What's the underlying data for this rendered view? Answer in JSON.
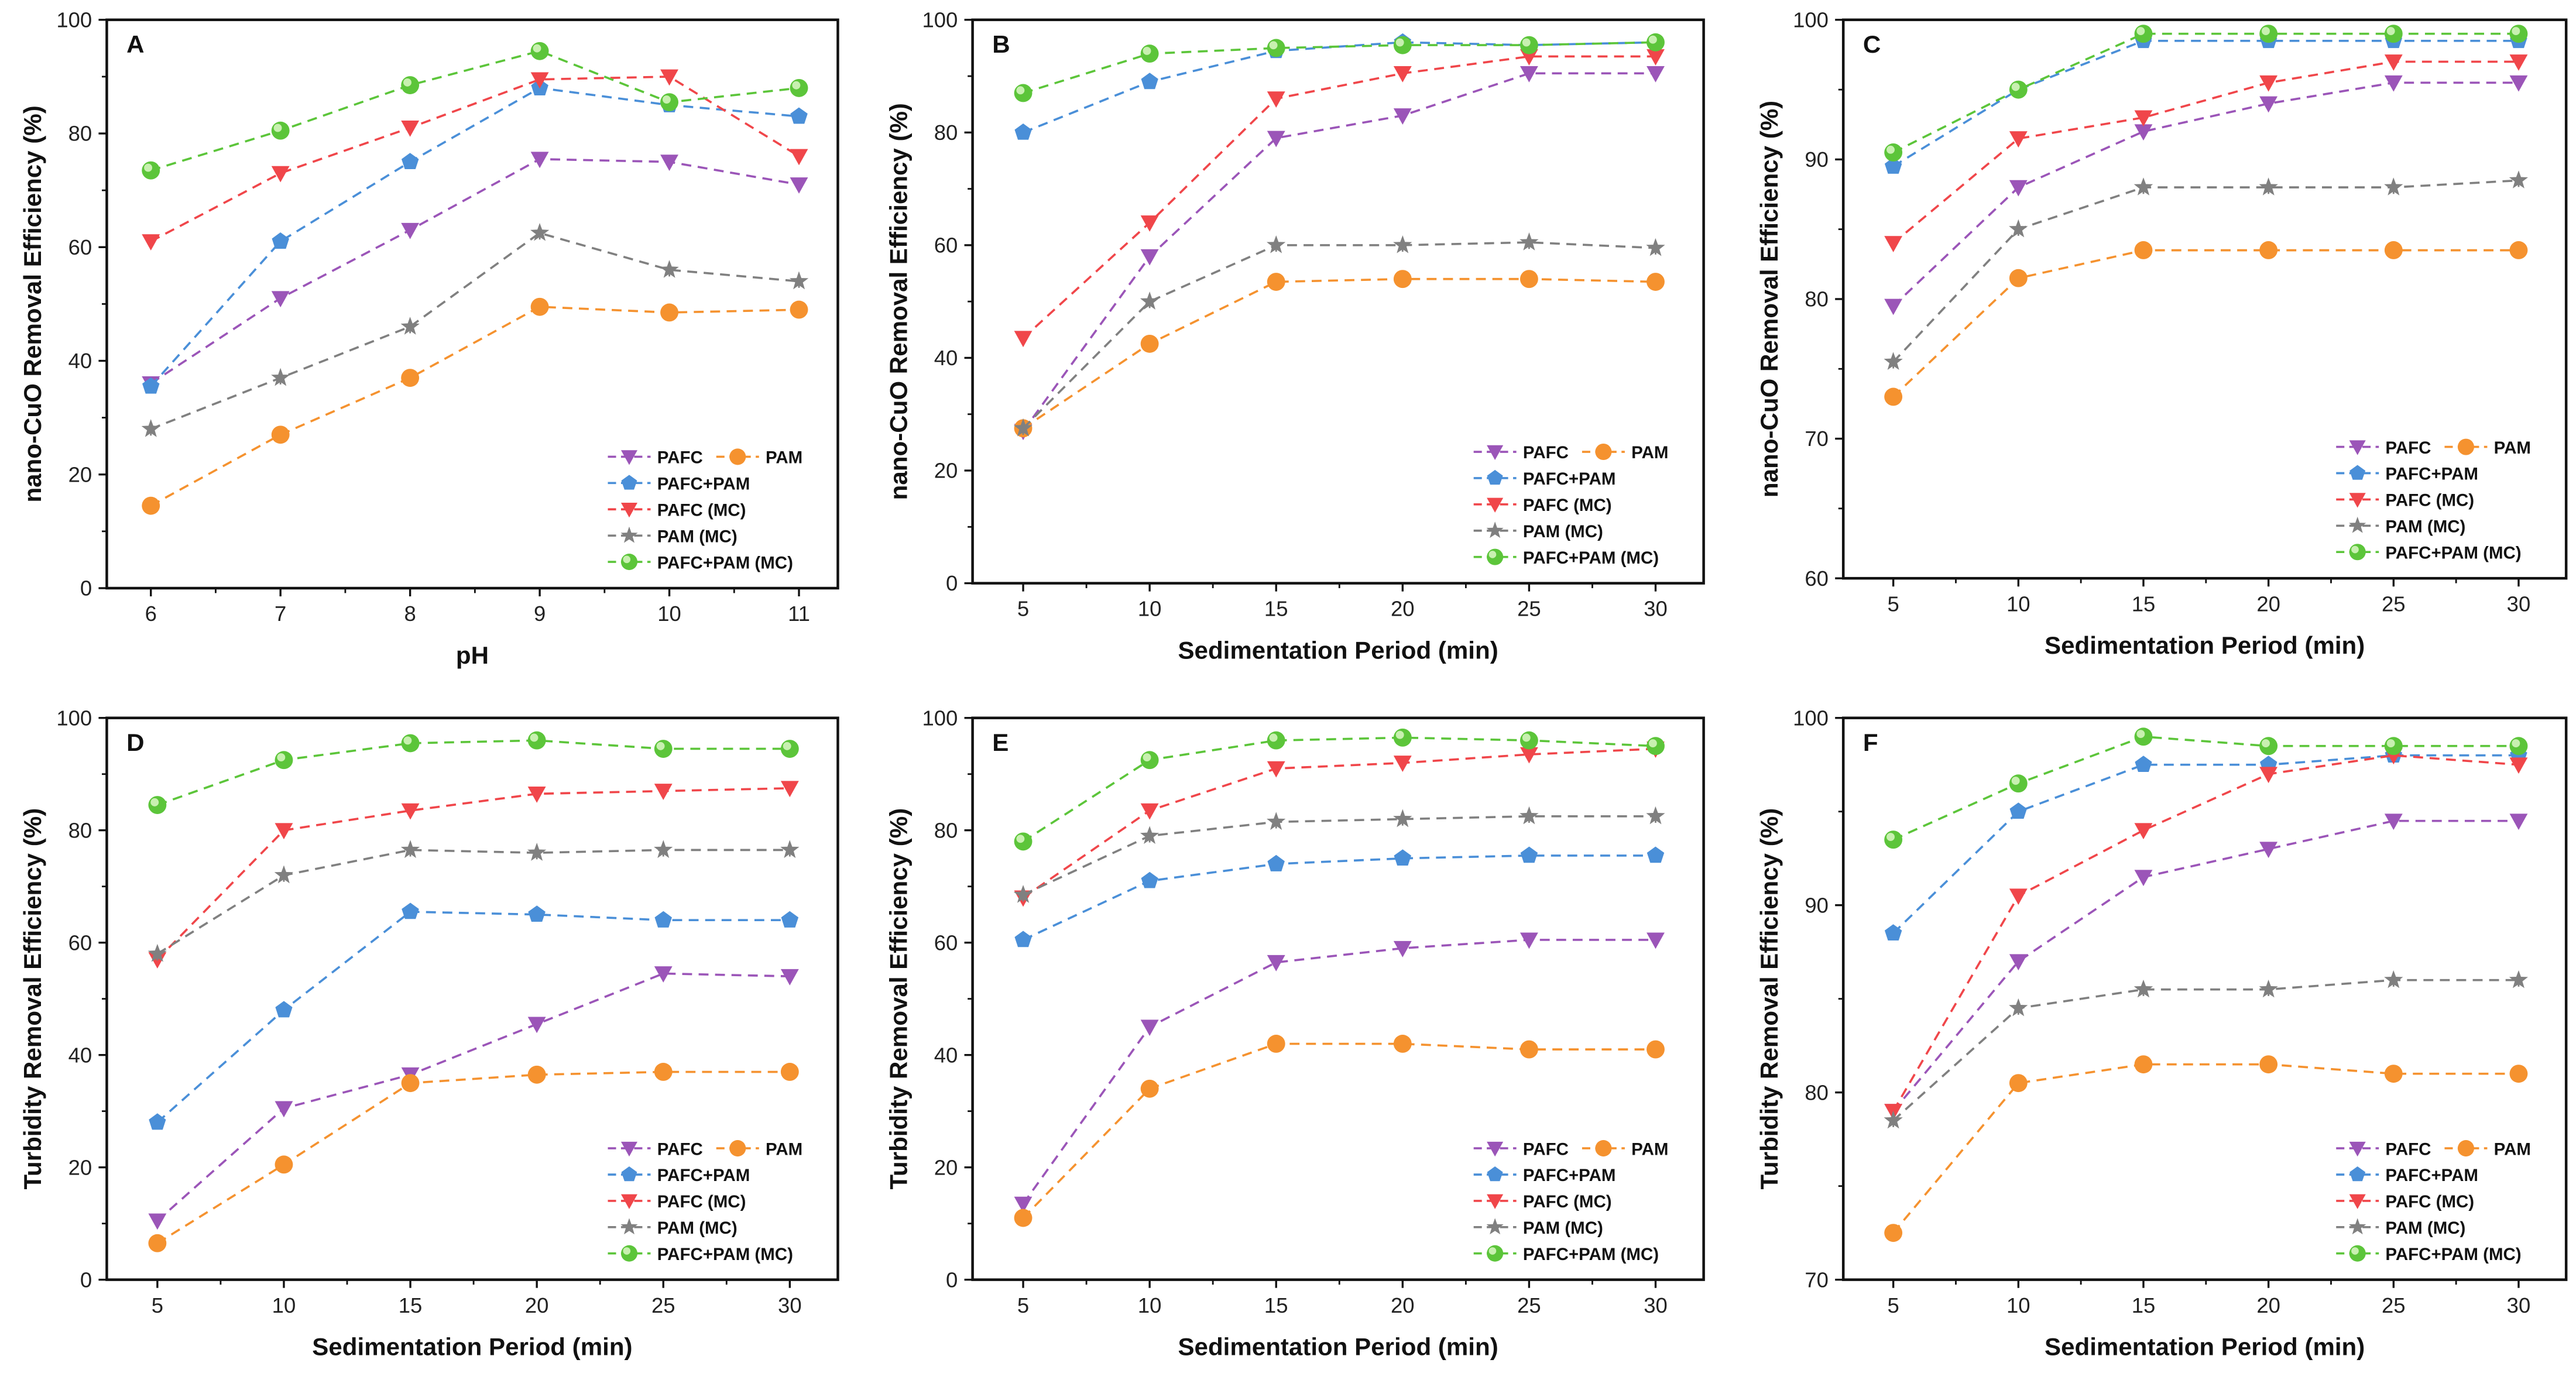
{
  "series_styles": [
    {
      "name": "PAFC",
      "color": "#9b55b8",
      "marker": "triangle-down"
    },
    {
      "name": "PAM",
      "color": "#f5922f",
      "marker": "circle"
    },
    {
      "name": "PAFC+PAM",
      "color": "#4a8fd8",
      "marker": "pentagon"
    },
    {
      "name": "PAFC (MC)",
      "color": "#f0464a",
      "marker": "triangle-down"
    },
    {
      "name": "PAM (MC)",
      "color": "#808080",
      "marker": "star"
    },
    {
      "name": "PAFC+PAM (MC)",
      "color": "#5cc53a",
      "marker": "circle-shaded"
    }
  ],
  "chart_data": [
    {
      "panel": "A",
      "type": "line",
      "xlabel": "pH",
      "ylabel": "nano-CuO Removal Efficiency (%)",
      "x": [
        6,
        7,
        8,
        9,
        10,
        11
      ],
      "xlim": [
        5.66,
        11.3
      ],
      "ylim": [
        0,
        100
      ],
      "yticks": [
        0,
        20,
        40,
        60,
        80,
        100
      ],
      "series": [
        {
          "name": "PAFC",
          "values": [
            36,
            51,
            63,
            75.5,
            75,
            71
          ]
        },
        {
          "name": "PAM",
          "values": [
            14.5,
            27,
            37,
            49.5,
            48.5,
            49
          ]
        },
        {
          "name": "PAFC+PAM",
          "values": [
            35.5,
            61,
            75,
            88,
            85,
            83
          ]
        },
        {
          "name": "PAFC (MC)",
          "values": [
            61,
            73,
            81,
            89.5,
            90,
            76
          ]
        },
        {
          "name": "PAM (MC)",
          "values": [
            28,
            37,
            46,
            62.5,
            56,
            54
          ]
        },
        {
          "name": "PAFC+PAM (MC)",
          "values": [
            73.5,
            80.5,
            88.5,
            94.5,
            85.5,
            88
          ]
        }
      ]
    },
    {
      "panel": "B",
      "type": "line",
      "xlabel": "Sedimentation Period (min)",
      "ylabel": "nano-CuO Removal Efficiency (%)",
      "x": [
        5,
        10,
        15,
        20,
        25,
        30
      ],
      "xlim": [
        3,
        31.9
      ],
      "ylim": [
        0,
        100
      ],
      "yticks": [
        0,
        20,
        40,
        60,
        80,
        100
      ],
      "series": [
        {
          "name": "PAFC",
          "values": [
            27,
            58,
            79,
            83,
            90.5,
            90.5
          ]
        },
        {
          "name": "PAM",
          "values": [
            27.5,
            42.5,
            53.5,
            54,
            54,
            53.5
          ]
        },
        {
          "name": "PAFC+PAM",
          "values": [
            80,
            89,
            94.5,
            96,
            95.5,
            96
          ]
        },
        {
          "name": "PAFC (MC)",
          "values": [
            43.5,
            64,
            86,
            90.5,
            93.5,
            93.5
          ]
        },
        {
          "name": "PAM (MC)",
          "values": [
            27.5,
            50,
            60,
            60,
            60.5,
            59.5
          ]
        },
        {
          "name": "PAFC+PAM (MC)",
          "values": [
            87,
            94,
            95,
            95.5,
            95.5,
            96
          ]
        }
      ]
    },
    {
      "panel": "C",
      "type": "line",
      "xlabel": "Sedimentation Period (min)",
      "ylabel": "nano-CuO Removal Efficiency (%)",
      "x": [
        5,
        10,
        15,
        20,
        25,
        30
      ],
      "xlim": [
        3,
        31.9
      ],
      "ylim": [
        60,
        100
      ],
      "yticks": [
        60,
        70,
        80,
        90,
        100
      ],
      "series": [
        {
          "name": "PAFC",
          "values": [
            79.5,
            88,
            92,
            94,
            95.5,
            95.5
          ]
        },
        {
          "name": "PAM",
          "values": [
            73,
            81.5,
            83.5,
            83.5,
            83.5,
            83.5
          ]
        },
        {
          "name": "PAFC+PAM",
          "values": [
            89.5,
            95,
            98.5,
            98.5,
            98.5,
            98.5
          ]
        },
        {
          "name": "PAFC (MC)",
          "values": [
            84,
            91.5,
            93,
            95.5,
            97,
            97
          ]
        },
        {
          "name": "PAM (MC)",
          "values": [
            75.5,
            85,
            88,
            88,
            88,
            88.5
          ]
        },
        {
          "name": "PAFC+PAM (MC)",
          "values": [
            90.5,
            95,
            99,
            99,
            99,
            99
          ]
        }
      ]
    },
    {
      "panel": "D",
      "type": "line",
      "xlabel": "Sedimentation Period (min)",
      "ylabel": "Turbidity Removal Efficiency (%)",
      "x": [
        5,
        10,
        15,
        20,
        25,
        30
      ],
      "xlim": [
        3,
        31.9
      ],
      "ylim": [
        0,
        100
      ],
      "yticks": [
        0,
        20,
        40,
        60,
        80,
        100
      ],
      "series": [
        {
          "name": "PAFC",
          "values": [
            10.5,
            30.5,
            36.5,
            45.5,
            54.5,
            54
          ]
        },
        {
          "name": "PAM",
          "values": [
            6.5,
            20.5,
            35,
            36.5,
            37,
            37
          ]
        },
        {
          "name": "PAFC+PAM",
          "values": [
            28,
            48,
            65.5,
            65,
            64,
            64
          ]
        },
        {
          "name": "PAFC (MC)",
          "values": [
            57,
            80,
            83.5,
            86.5,
            87,
            87.5
          ]
        },
        {
          "name": "PAM (MC)",
          "values": [
            58,
            72,
            76.5,
            76,
            76.5,
            76.5
          ]
        },
        {
          "name": "PAFC+PAM (MC)",
          "values": [
            84.5,
            92.5,
            95.5,
            96,
            94.5,
            94.5
          ]
        }
      ]
    },
    {
      "panel": "E",
      "type": "line",
      "xlabel": "Sedimentation Period (min)",
      "ylabel": "Turbidity Removal Efficiency (%)",
      "x": [
        5,
        10,
        15,
        20,
        25,
        30
      ],
      "xlim": [
        3,
        31.9
      ],
      "ylim": [
        0,
        100
      ],
      "yticks": [
        0,
        20,
        40,
        60,
        80,
        100
      ],
      "series": [
        {
          "name": "PAFC",
          "values": [
            13.5,
            45,
            56.5,
            59,
            60.5,
            60.5
          ]
        },
        {
          "name": "PAM",
          "values": [
            11,
            34,
            42,
            42,
            41,
            41
          ]
        },
        {
          "name": "PAFC+PAM",
          "values": [
            60.5,
            71,
            74,
            75,
            75.5,
            75.5
          ]
        },
        {
          "name": "PAFC (MC)",
          "values": [
            68,
            83.5,
            91,
            92,
            93.5,
            94.5
          ]
        },
        {
          "name": "PAM (MC)",
          "values": [
            68.5,
            79,
            81.5,
            82,
            82.5,
            82.5
          ]
        },
        {
          "name": "PAFC+PAM (MC)",
          "values": [
            78,
            92.5,
            96,
            96.5,
            96,
            95
          ]
        }
      ]
    },
    {
      "panel": "F",
      "type": "line",
      "xlabel": "Sedimentation Period (min)",
      "ylabel": "Turbidity Removal Efficiency (%)",
      "x": [
        5,
        10,
        15,
        20,
        25,
        30
      ],
      "xlim": [
        3,
        31.9
      ],
      "ylim": [
        70,
        100
      ],
      "yticks": [
        70,
        80,
        90,
        100
      ],
      "series": [
        {
          "name": "PAFC",
          "values": [
            79,
            87,
            91.5,
            93,
            94.5,
            94.5
          ]
        },
        {
          "name": "PAM",
          "values": [
            72.5,
            80.5,
            81.5,
            81.5,
            81,
            81
          ]
        },
        {
          "name": "PAFC+PAM",
          "values": [
            88.5,
            95,
            97.5,
            97.5,
            98,
            98
          ]
        },
        {
          "name": "PAFC (MC)",
          "values": [
            79,
            90.5,
            94,
            97,
            98,
            97.5
          ]
        },
        {
          "name": "PAM (MC)",
          "values": [
            78.5,
            84.5,
            85.5,
            85.5,
            86,
            86
          ]
        },
        {
          "name": "PAFC+PAM (MC)",
          "values": [
            93.5,
            96.5,
            99,
            98.5,
            98.5,
            98.5
          ]
        }
      ]
    }
  ]
}
